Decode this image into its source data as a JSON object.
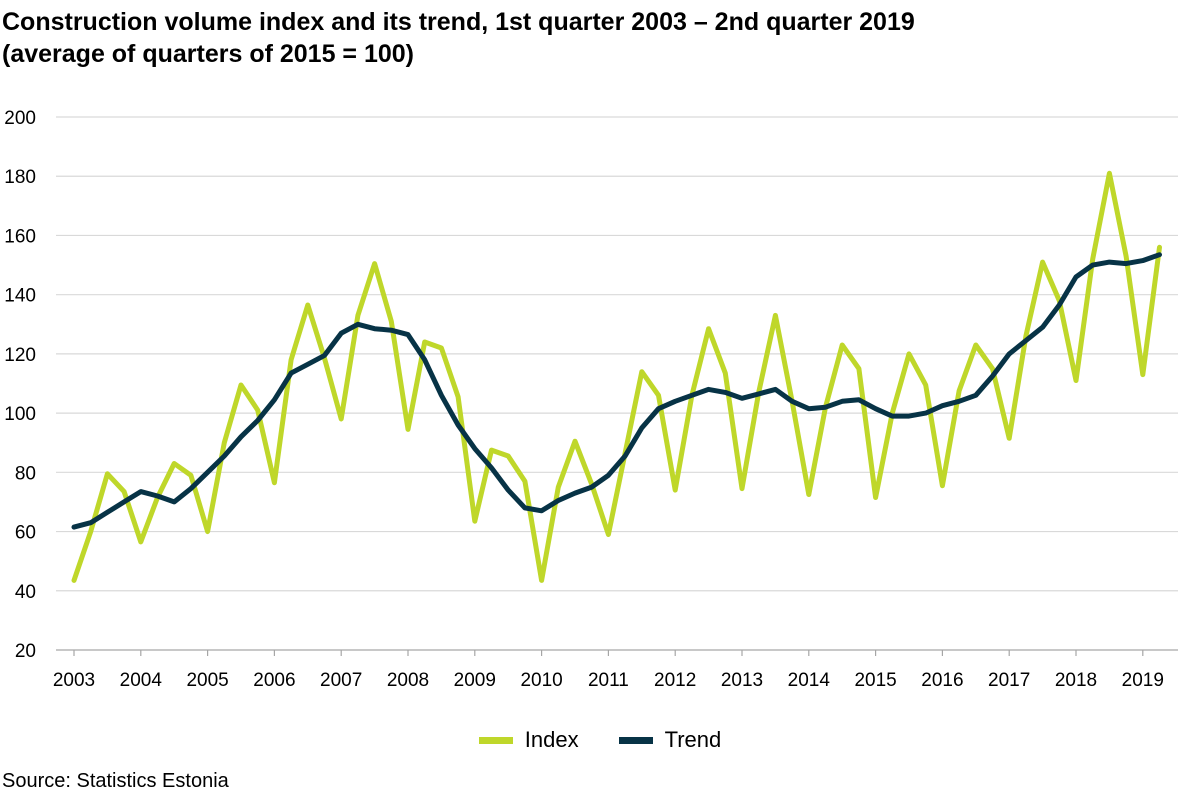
{
  "title_line1": "Construction volume index and its trend, 1st quarter 2003 – 2nd quarter 2019",
  "title_line2": "(average of quarters of 2015 = 100)",
  "source": "Source: Statistics Estonia",
  "colors": {
    "index": "#bfd72a",
    "trend": "#073346",
    "grid": "#d9d9d9"
  },
  "chart_data": {
    "type": "line",
    "title": "Construction volume index and its trend, 1st quarter 2003 – 2nd quarter 2019",
    "subtitle": "(average of quarters of 2015 = 100)",
    "ylim": [
      20,
      200
    ],
    "yticks": [
      20,
      40,
      60,
      80,
      100,
      120,
      140,
      160,
      180,
      200
    ],
    "xtick_labels": [
      "2003",
      "2004",
      "2005",
      "2006",
      "2007",
      "2008",
      "2009",
      "2010",
      "2011",
      "2012",
      "2013",
      "2014",
      "2015",
      "2016",
      "2017",
      "2018",
      "2019"
    ],
    "grid": true,
    "legend_position": "bottom",
    "x_start_year": 2003,
    "series": [
      {
        "name": "Index",
        "color": "#bfd72a",
        "values": [
          43.5,
          60,
          79.5,
          73.5,
          56.5,
          71.5,
          83,
          79,
          60,
          90,
          109.5,
          101,
          76.5,
          118,
          136.5,
          118.5,
          98,
          133,
          150.5,
          131,
          94.5,
          124,
          122,
          105.5,
          63.5,
          87.5,
          85.5,
          77,
          43.5,
          75,
          90.5,
          76,
          59,
          86.5,
          114,
          106,
          74,
          106,
          128.5,
          113.5,
          74.5,
          107,
          133,
          104,
          72.5,
          102,
          123,
          115,
          71.5,
          100,
          120,
          109.5,
          75.5,
          107.5,
          123,
          115,
          91.5,
          126,
          151,
          138,
          111,
          152,
          181,
          153,
          113,
          156
        ]
      },
      {
        "name": "Trend",
        "color": "#073346",
        "values": [
          61.5,
          63,
          66.5,
          70,
          73.5,
          72,
          70,
          74.5,
          80,
          85.5,
          92,
          97.5,
          104.5,
          113.5,
          116.5,
          119.5,
          127,
          130,
          128.5,
          128,
          126.5,
          118,
          106,
          96,
          88,
          81.5,
          74,
          68,
          67,
          70.5,
          73,
          75,
          79,
          85.5,
          95,
          101.5,
          104,
          106,
          108,
          107,
          105,
          106.5,
          108,
          104,
          101.5,
          102,
          104,
          104.5,
          101.5,
          99,
          99,
          100,
          102.5,
          104,
          106,
          112.5,
          120,
          124.5,
          129,
          136.5,
          146,
          150,
          151,
          150.5,
          151.5,
          153.5
        ]
      }
    ]
  }
}
